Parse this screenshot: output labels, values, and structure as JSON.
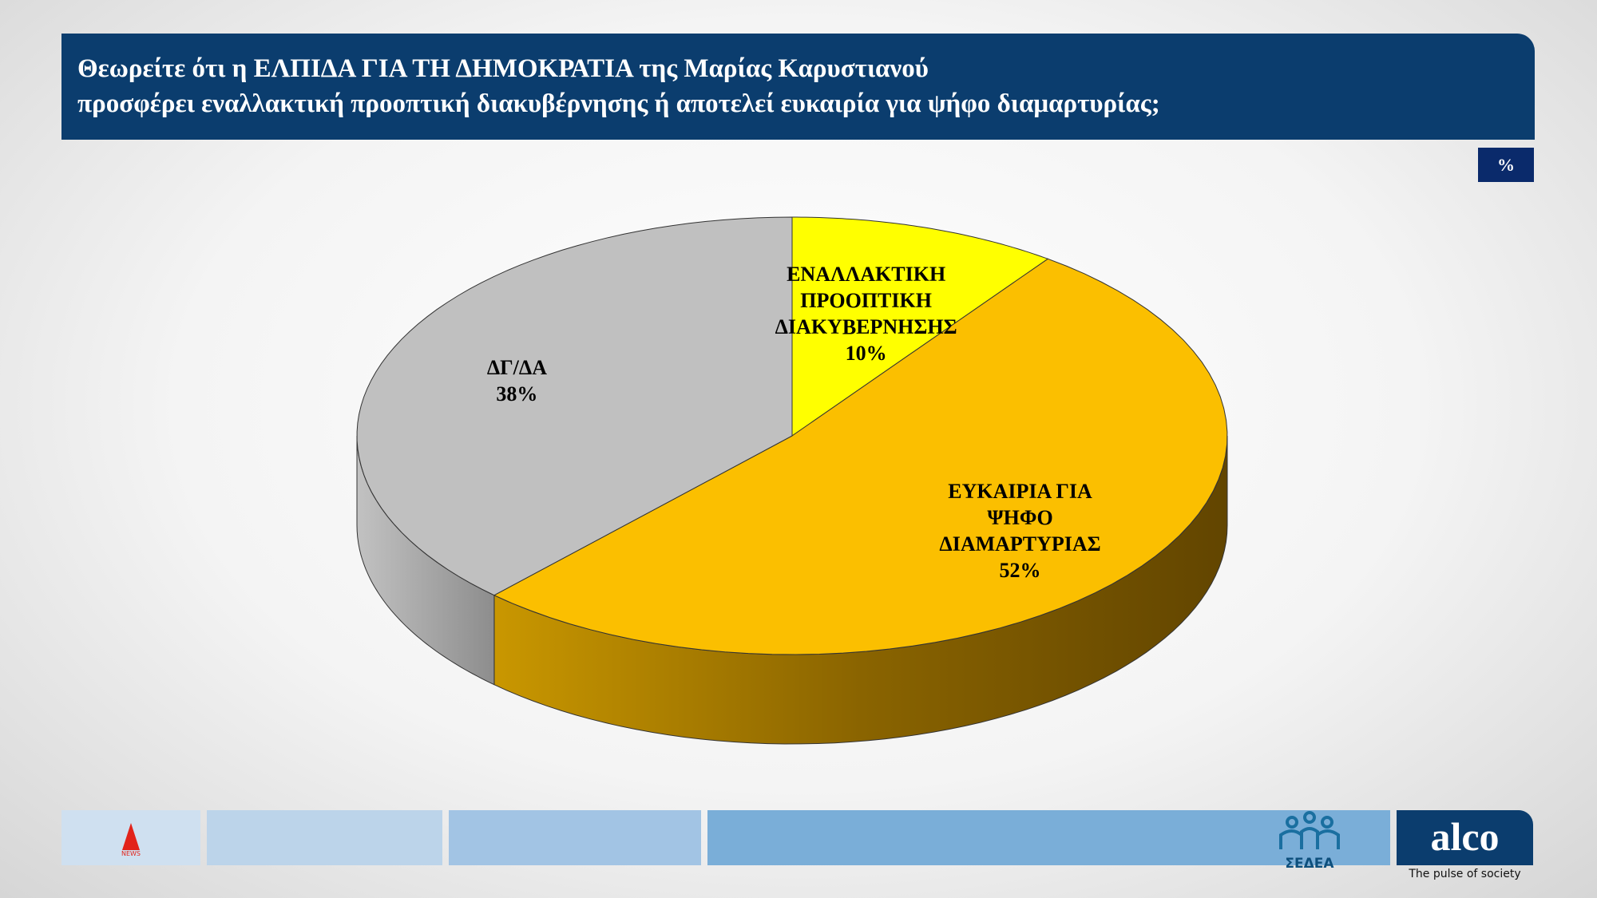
{
  "header": {
    "title": "Θεωρείτε ότι η ΕΛΠΙΔΑ ΓΙΑ ΤΗ ΔΗΜΟΚΡΑΤΙΑ της Μαρίας Καρυστιανού\nπροσφέρει εναλλακτική προοπτική διακυβέρνησης ή αποτελεί ευκαιρία για ψήφο διαμαρτυρίας;",
    "unit": "%"
  },
  "chart_data": {
    "type": "pie3d",
    "categories": [
      "ΕΝΑΛΛΑΚΤΙΚΗ\nΠΡΟΟΠΤΙΚΗ\nΔΙΑΚΥΒΕΡΝΗΣΗΣ",
      "ΕΥΚΑΙΡΙΑ ΓΙΑ\nΨΗΦΟ\nΔΙΑΜΑΡΤΥΡΙΑΣ",
      "ΔΓ/ΔΑ"
    ],
    "values": [
      10,
      52,
      38
    ],
    "value_labels": [
      "10%",
      "52%",
      "38%"
    ],
    "colors": [
      "#ffff00",
      "#fbbf00",
      "#c0c0c0"
    ]
  },
  "footer": {
    "brand": "alco",
    "tagline": "The pulse of society",
    "partner": "ΣΕΔΕΑ",
    "channel": "NEWS"
  }
}
